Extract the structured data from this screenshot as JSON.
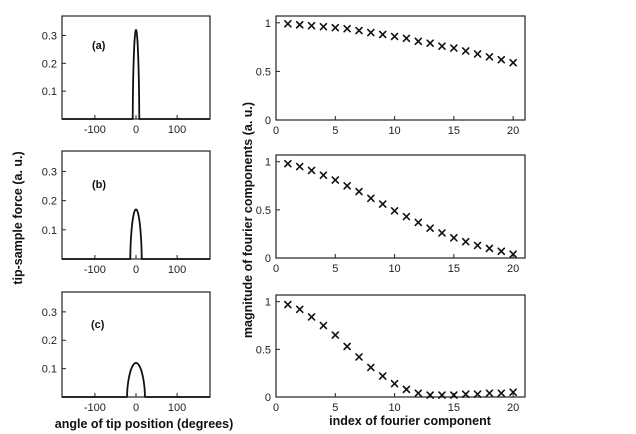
{
  "chart_data": [
    {
      "type": "line",
      "panel_label": "(a)",
      "force_curve": {
        "amplitude": 0.32,
        "half_width_deg": 8
      },
      "xlim": [
        -180,
        180
      ],
      "ylim": [
        0,
        0.37
      ],
      "xticks": [
        -100,
        0,
        100
      ],
      "yticks": [
        0.1,
        0.2,
        0.3
      ],
      "xtick_labels": [
        "-100",
        "0",
        "100"
      ],
      "ytick_labels": [
        "0.1",
        "0.2",
        "0.3"
      ]
    },
    {
      "type": "line",
      "panel_label": "(b)",
      "force_curve": {
        "amplitude": 0.17,
        "half_width_deg": 14
      },
      "xlim": [
        -180,
        180
      ],
      "ylim": [
        0,
        0.37
      ],
      "xticks": [
        -100,
        0,
        100
      ],
      "yticks": [
        0.1,
        0.2,
        0.3
      ],
      "xtick_labels": [
        "-100",
        "0",
        "100"
      ],
      "ytick_labels": [
        "0.1",
        "0.2",
        "0.3"
      ]
    },
    {
      "type": "line",
      "panel_label": "(c)",
      "force_curve": {
        "amplitude": 0.12,
        "half_width_deg": 22
      },
      "xlim": [
        -180,
        180
      ],
      "ylim": [
        0,
        0.37
      ],
      "xticks": [
        -100,
        0,
        100
      ],
      "yticks": [
        0.1,
        0.2,
        0.3
      ],
      "xtick_labels": [
        "-100",
        "0",
        "100"
      ],
      "ytick_labels": [
        "0.1",
        "0.2",
        "0.3"
      ]
    },
    {
      "type": "scatter",
      "x": [
        1,
        2,
        3,
        4,
        5,
        6,
        7,
        8,
        9,
        10,
        11,
        12,
        13,
        14,
        15,
        16,
        17,
        18,
        19,
        20
      ],
      "y": [
        0.99,
        0.98,
        0.97,
        0.96,
        0.95,
        0.94,
        0.92,
        0.9,
        0.88,
        0.86,
        0.84,
        0.81,
        0.79,
        0.76,
        0.74,
        0.71,
        0.68,
        0.65,
        0.62,
        0.59
      ],
      "xlim": [
        0,
        21
      ],
      "ylim": [
        0,
        1.07
      ],
      "xticks": [
        0,
        5,
        10,
        15,
        20
      ],
      "yticks": [
        0,
        0.5,
        1
      ],
      "xtick_labels": [
        "0",
        "5",
        "10",
        "15",
        "20"
      ],
      "ytick_labels": [
        "0",
        "0.5",
        "1"
      ]
    },
    {
      "type": "scatter",
      "x": [
        1,
        2,
        3,
        4,
        5,
        6,
        7,
        8,
        9,
        10,
        11,
        12,
        13,
        14,
        15,
        16,
        17,
        18,
        19,
        20
      ],
      "y": [
        0.98,
        0.95,
        0.91,
        0.86,
        0.81,
        0.75,
        0.69,
        0.62,
        0.56,
        0.49,
        0.43,
        0.37,
        0.31,
        0.26,
        0.21,
        0.17,
        0.13,
        0.1,
        0.07,
        0.04
      ],
      "xlim": [
        0,
        21
      ],
      "ylim": [
        0,
        1.07
      ],
      "xticks": [
        0,
        5,
        10,
        15,
        20
      ],
      "yticks": [
        0,
        0.5,
        1
      ],
      "xtick_labels": [
        "0",
        "5",
        "10",
        "15",
        "20"
      ],
      "ytick_labels": [
        "0",
        "0.5",
        "1"
      ]
    },
    {
      "type": "scatter",
      "x": [
        1,
        2,
        3,
        4,
        5,
        6,
        7,
        8,
        9,
        10,
        11,
        12,
        13,
        14,
        15,
        16,
        17,
        18,
        19,
        20
      ],
      "y": [
        0.97,
        0.92,
        0.84,
        0.75,
        0.65,
        0.53,
        0.42,
        0.31,
        0.22,
        0.14,
        0.08,
        0.04,
        0.02,
        0.02,
        0.02,
        0.03,
        0.03,
        0.04,
        0.04,
        0.05
      ],
      "xlim": [
        0,
        21
      ],
      "ylim": [
        0,
        1.07
      ],
      "xticks": [
        0,
        5,
        10,
        15,
        20
      ],
      "yticks": [
        0,
        0.5,
        1
      ],
      "xtick_labels": [
        "0",
        "5",
        "10",
        "15",
        "20"
      ],
      "ytick_labels": [
        "0",
        "0.5",
        "1"
      ]
    }
  ],
  "labels": {
    "left_ylabel": "tip-sample force (a. u.)",
    "left_xlabel": "angle of tip position (degrees)",
    "right_ylabel": "magnitude of fourier components (a. u.)",
    "right_xlabel": "index of fourier component"
  }
}
